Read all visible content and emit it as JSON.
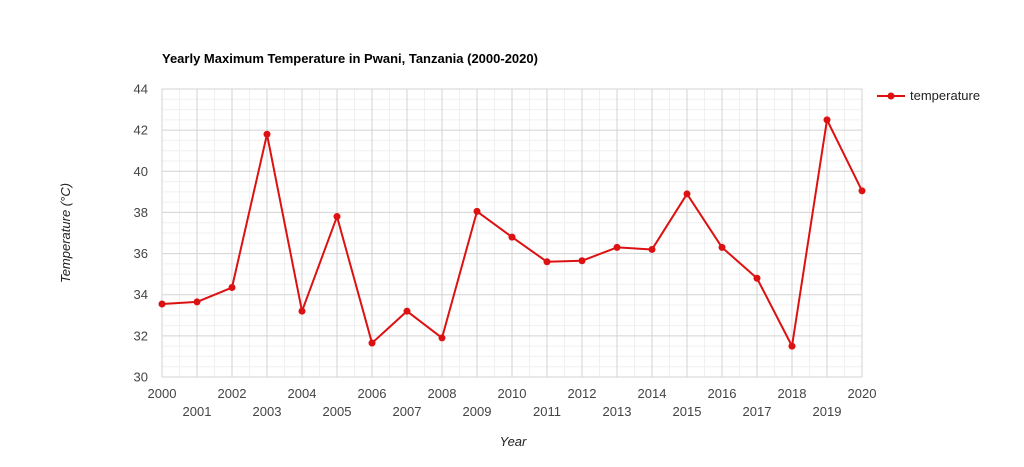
{
  "chart_data": {
    "type": "line",
    "title": "Yearly Maximum Temperature in Pwani, Tanzania (2000-2020)",
    "xlabel": "Year",
    "ylabel": "Temperature (°C)",
    "x": [
      2000,
      2001,
      2002,
      2003,
      2004,
      2005,
      2006,
      2007,
      2008,
      2009,
      2010,
      2011,
      2012,
      2013,
      2014,
      2015,
      2016,
      2017,
      2018,
      2019,
      2020
    ],
    "x_tick_labels": [
      "2000",
      "2001",
      "2002",
      "2003",
      "2004",
      "2005",
      "2006",
      "2007",
      "2008",
      "2009",
      "2010",
      "2011",
      "2012",
      "2013",
      "2014",
      "2015",
      "2016",
      "2017",
      "2018",
      "2019",
      "2020"
    ],
    "y_tick_labels": [
      "30",
      "32",
      "34",
      "36",
      "38",
      "40",
      "42",
      "44"
    ],
    "xlim": [
      2000,
      2020
    ],
    "ylim": [
      30,
      44
    ],
    "grid": true,
    "legend_position": "top-right",
    "series": [
      {
        "name": "temperature",
        "color": "#dd1111",
        "values": [
          33.55,
          33.65,
          34.35,
          41.8,
          33.2,
          37.8,
          31.65,
          33.2,
          31.9,
          38.05,
          36.8,
          35.6,
          35.65,
          36.3,
          36.2,
          38.9,
          36.3,
          34.8,
          31.5,
          42.5,
          39.05
        ]
      }
    ]
  }
}
